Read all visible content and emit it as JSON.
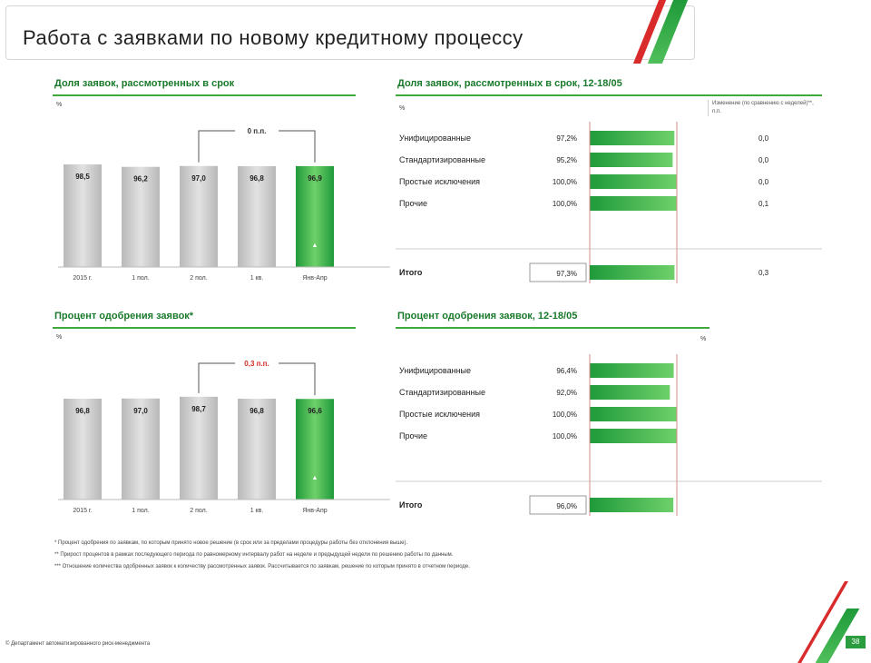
{
  "header": {
    "title": "Работа с заявками по новому кредитному процессу"
  },
  "chart_data": [
    {
      "type": "bar",
      "title": "Доля заявок, рассмотренных в срок",
      "ylabel": "%",
      "categories": [
        "2015 г.",
        "1 пол.",
        "2 пол.",
        "1 кв.",
        "Янв-Апр"
      ],
      "values": [
        98.5,
        96.2,
        97.0,
        96.8,
        96.9
      ],
      "highlight_index": 4,
      "ylim": [
        0,
        150
      ],
      "bracket_label": "0 п.п.",
      "bracket_color": "#333333",
      "bar_colors": {
        "normal": "#c8c8c8",
        "highlight": "#3aa84a"
      }
    },
    {
      "type": "bar",
      "title": "Процент одобрения заявок*",
      "ylabel": "%",
      "categories": [
        "2015 г.",
        "1 пол.",
        "2 пол.",
        "1 кв.",
        "Янв-Апр"
      ],
      "values": [
        96.8,
        97.0,
        98.7,
        96.8,
        96.6
      ],
      "highlight_index": 4,
      "ylim": [
        0,
        150
      ],
      "bracket_label": "0,3 п.п.",
      "bracket_color": "#d92b2b",
      "bar_colors": {
        "normal": "#c8c8c8",
        "highlight": "#3aa84a"
      }
    },
    {
      "type": "bar",
      "title": "Доля заявок, рассмотренных в срок, 12-18/05",
      "orientation": "horizontal",
      "categories": [
        "Унифицированные",
        "Стандартизированные",
        "Простые исключения",
        "Прочие"
      ],
      "values": [
        97.2,
        95.2,
        100.0,
        100.0
      ],
      "right_values": [
        "0,0",
        "0,0",
        "0,0",
        "0,1"
      ],
      "total_label": "Итого",
      "total_value": 97.3,
      "total_right": "0,3",
      "xlim": [
        0,
        100
      ],
      "legend_note": "Изменение (по сравнению с неделей)**, п.п.",
      "xlabel": "%"
    },
    {
      "type": "bar",
      "title": "Процент одобрения заявок, 12-18/05",
      "orientation": "horizontal",
      "categories": [
        "Унифицированные",
        "Стандартизированные",
        "Простые исключения",
        "Прочие"
      ],
      "values": [
        96.4,
        92.0,
        100.0,
        100.0
      ],
      "total_label": "Итого",
      "total_value": 96.0,
      "xlim": [
        0,
        100
      ],
      "xlabel": "%"
    }
  ],
  "footnotes": [
    "* Процент одобрения по заявкам, по которым принято новое решение (в срок или за пределами процедуры работы без отклонения выше).",
    "** Прирост процентов в рамках последующего периода по равномерному интервалу работ на неделе и предыдущей недели по решению работы по данным.",
    "*** Отношение количества одобренных заявок к количеству рассмотренных заявок. Рассчитывается по заявкам, решение по которым принято в отчетном периоде."
  ],
  "footer": {
    "left": "© Департамент автоматизированного риск-менеджмента",
    "page": "38"
  }
}
